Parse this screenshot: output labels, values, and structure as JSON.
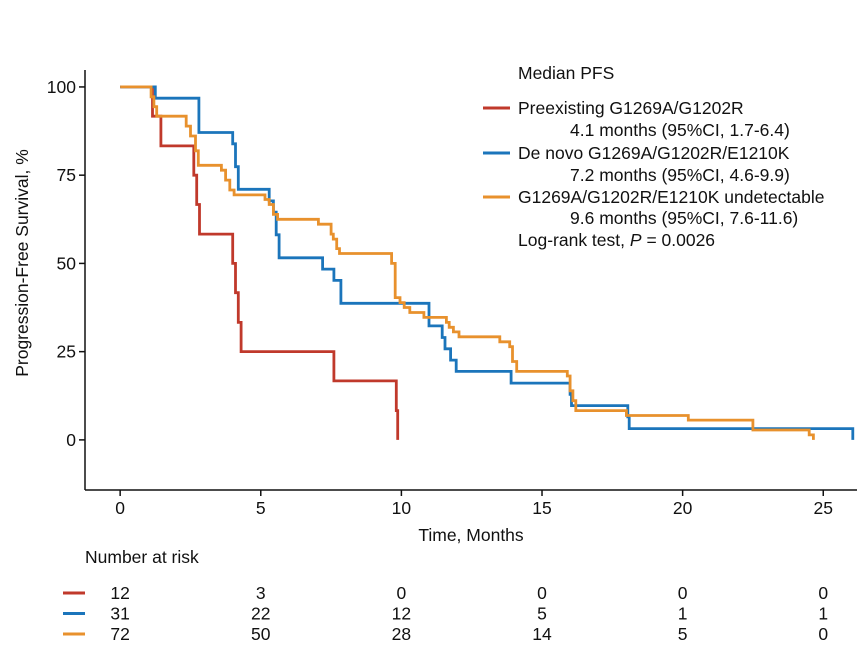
{
  "chart_data": {
    "type": "line",
    "interpolation": "step-after",
    "xlabel": "Time, Months",
    "ylabel": "Progression-Free Survival, %",
    "xlim": [
      -1.25,
      26.2
    ],
    "ylim": [
      -14.2,
      104.8
    ],
    "x_ticks": [
      0,
      5,
      10,
      15,
      20,
      25
    ],
    "y_ticks": [
      0,
      25,
      50,
      75,
      100
    ],
    "grid": false,
    "legend": {
      "position": "top-right",
      "title": "Median PFS",
      "test_label": "Log-rank test,",
      "test_statistic": "P",
      "test_value": "= 0.0026"
    },
    "series": [
      {
        "name": "Preexisting G1269A/G1202R",
        "median_label": "4.1 months (95%CI, 1.7-6.4)",
        "color": "#C0392B",
        "time": [
          0,
          1.15,
          1.45,
          2.62,
          2.72,
          2.82,
          4.0,
          4.1,
          4.2,
          4.3,
          7.6,
          9.82,
          9.87
        ],
        "survival": [
          100,
          91.7,
          83.3,
          75.0,
          66.7,
          58.3,
          50.0,
          41.7,
          33.3,
          25.0,
          16.7,
          8.3,
          0
        ]
      },
      {
        "name": "De novo G1269A/G1202R/E1210K",
        "median_label": "7.2 months (95%CI, 4.6-9.9)",
        "color": "#1B75BB",
        "time": [
          0,
          1.25,
          2.8,
          4.0,
          4.1,
          4.2,
          5.3,
          5.45,
          5.55,
          5.65,
          7.2,
          7.6,
          7.85,
          10.98,
          11.45,
          11.55,
          11.75,
          11.95,
          13.9,
          16.0,
          16.05,
          18.05,
          18.1,
          26.05
        ],
        "survival": [
          100,
          96.8,
          87.1,
          83.9,
          77.4,
          71.0,
          67.7,
          64.5,
          58.1,
          51.6,
          48.4,
          45.2,
          38.7,
          32.3,
          29.0,
          25.8,
          22.6,
          19.4,
          16.1,
          12.9,
          9.7,
          6.5,
          3.2,
          0
        ]
      },
      {
        "name": "G1269A/G1202R/E1210K undetectable",
        "median_label": "9.6 months (95%CI, 7.6-11.6)",
        "color": "#E8912D",
        "time": [
          0,
          1.1,
          1.2,
          1.3,
          2.35,
          2.5,
          2.68,
          2.78,
          3.6,
          3.75,
          3.9,
          4.05,
          5.15,
          5.3,
          5.45,
          5.6,
          7.05,
          7.5,
          7.58,
          7.7,
          7.8,
          9.65,
          9.78,
          9.95,
          10.1,
          10.3,
          10.8,
          11.6,
          11.7,
          11.85,
          12.05,
          13.5,
          13.85,
          13.95,
          14.1,
          15.9,
          16.0,
          16.1,
          16.2,
          18.0,
          20.2,
          22.5,
          24.5,
          24.65
        ],
        "survival": [
          100,
          97.2,
          94.4,
          91.7,
          88.9,
          86.1,
          81.9,
          77.8,
          76.4,
          73.6,
          70.8,
          69.4,
          68.1,
          66.7,
          63.9,
          62.5,
          61.1,
          58.3,
          56.9,
          54.2,
          52.8,
          50.0,
          40.3,
          38.9,
          37.5,
          36.1,
          34.7,
          33.3,
          31.9,
          30.6,
          29.2,
          27.8,
          26.4,
          22.2,
          19.4,
          18.1,
          13.9,
          11.1,
          8.3,
          6.9,
          5.6,
          2.8,
          1.4,
          0
        ]
      }
    ],
    "risk_table": {
      "title": "Number at risk",
      "times": [
        0,
        5,
        10,
        15,
        20,
        25
      ],
      "rows": [
        [
          12,
          3,
          0,
          0,
          0,
          0
        ],
        [
          31,
          22,
          12,
          5,
          1,
          1
        ],
        [
          72,
          50,
          28,
          14,
          5,
          0
        ]
      ]
    }
  }
}
